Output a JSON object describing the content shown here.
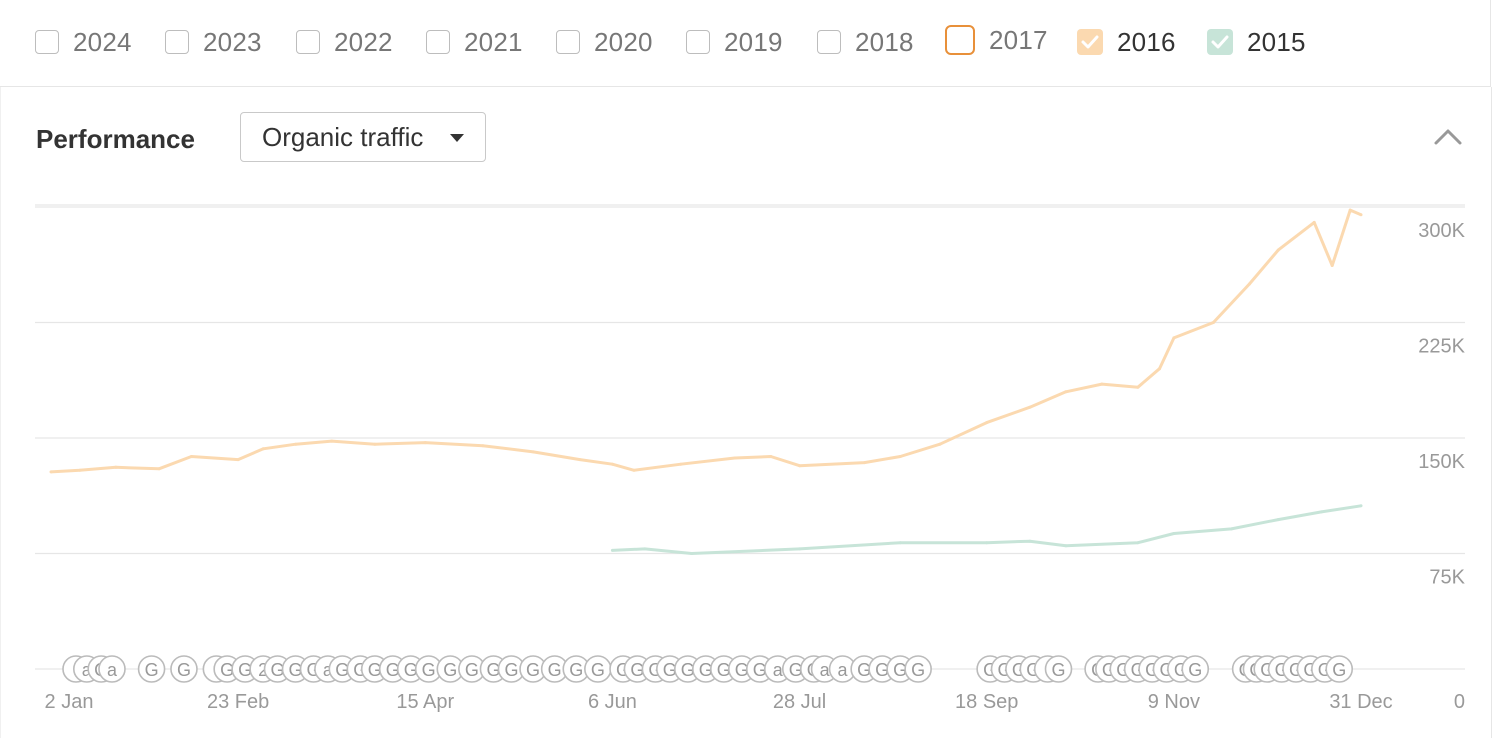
{
  "years": [
    {
      "label": "2024",
      "state": "unchecked"
    },
    {
      "label": "2023",
      "state": "unchecked"
    },
    {
      "label": "2022",
      "state": "unchecked"
    },
    {
      "label": "2021",
      "state": "unchecked"
    },
    {
      "label": "2020",
      "state": "unchecked"
    },
    {
      "label": "2019",
      "state": "unchecked"
    },
    {
      "label": "2018",
      "state": "unchecked"
    },
    {
      "label": "2017",
      "state": "highlighted"
    },
    {
      "label": "2016",
      "state": "checked"
    },
    {
      "label": "2015",
      "state": "checked"
    }
  ],
  "panel": {
    "title": "Performance",
    "metric_selected": "Organic traffic",
    "collapse_icon": "chevron-up-icon",
    "annotation_icon": "google-update-marker-icon"
  },
  "colors": {
    "series_2016": "#fbd9b0",
    "series_2015": "#c7e4d8",
    "highlight": "#e8903a",
    "grid": "#e6e6e6"
  },
  "chart_data": {
    "type": "line",
    "xlabel": "",
    "ylabel": "",
    "x_ticks": [
      "2 Jan",
      "23 Feb",
      "15 Apr",
      "6 Jun",
      "28 Jul",
      "18 Sep",
      "9 Nov",
      "31 Dec"
    ],
    "y_ticks": [
      "0",
      "75K",
      "150K",
      "225K",
      "300K"
    ],
    "ylim": [
      0,
      310000
    ],
    "grid": true,
    "series": [
      {
        "name": "2016",
        "color": "#fbd9b0",
        "points": [
          [
            "2 Jan",
            128000
          ],
          [
            "10 Jan",
            129000
          ],
          [
            "20 Jan",
            131000
          ],
          [
            "1 Feb",
            130000
          ],
          [
            "10 Feb",
            138000
          ],
          [
            "23 Feb",
            136000
          ],
          [
            "1 Mar",
            143000
          ],
          [
            "10 Mar",
            146000
          ],
          [
            "20 Mar",
            148000
          ],
          [
            "1 Apr",
            146000
          ],
          [
            "15 Apr",
            147000
          ],
          [
            "1 May",
            145000
          ],
          [
            "15 May",
            141000
          ],
          [
            "28 May",
            136000
          ],
          [
            "6 Jun",
            133000
          ],
          [
            "12 Jun",
            129000
          ],
          [
            "25 Jun",
            133000
          ],
          [
            "10 Jul",
            137000
          ],
          [
            "20 Jul",
            138000
          ],
          [
            "28 Jul",
            132000
          ],
          [
            "15 Aug",
            134000
          ],
          [
            "25 Aug",
            138000
          ],
          [
            "5 Sep",
            146000
          ],
          [
            "18 Sep",
            160000
          ],
          [
            "30 Sep",
            170000
          ],
          [
            "10 Oct",
            180000
          ],
          [
            "20 Oct",
            185000
          ],
          [
            "30 Oct",
            183000
          ],
          [
            "5 Nov",
            195000
          ],
          [
            "9 Nov",
            215000
          ],
          [
            "20 Nov",
            225000
          ],
          [
            "30 Nov",
            250000
          ],
          [
            "8 Dec",
            272000
          ],
          [
            "18 Dec",
            290000
          ],
          [
            "23 Dec",
            262000
          ],
          [
            "28 Dec",
            298000
          ],
          [
            "31 Dec",
            295000
          ]
        ]
      },
      {
        "name": "2015",
        "color": "#c7e4d8",
        "points": [
          [
            "6 Jun",
            77000
          ],
          [
            "15 Jun",
            78000
          ],
          [
            "28 Jun",
            75000
          ],
          [
            "28 Jul",
            78000
          ],
          [
            "25 Aug",
            82000
          ],
          [
            "18 Sep",
            82000
          ],
          [
            "30 Sep",
            83000
          ],
          [
            "10 Oct",
            80000
          ],
          [
            "30 Oct",
            82000
          ],
          [
            "9 Nov",
            88000
          ],
          [
            "25 Nov",
            91000
          ],
          [
            "8 Dec",
            97000
          ],
          [
            "20 Dec",
            102000
          ],
          [
            "31 Dec",
            106000
          ]
        ]
      }
    ],
    "annotation_markers": [
      {
        "date": "2 Jan",
        "label": ""
      },
      {
        "date": "5 Jan",
        "label": "a"
      },
      {
        "date": "9 Jan",
        "label": "G"
      },
      {
        "date": "12 Jan",
        "label": "a"
      },
      {
        "date": "23 Jan",
        "label": "G"
      },
      {
        "date": "1 Feb",
        "label": "G"
      },
      {
        "date": "10 Feb",
        "label": ""
      },
      {
        "date": "13 Feb",
        "label": "G"
      },
      {
        "date": "18 Feb",
        "label": "G"
      },
      {
        "date": "23 Feb",
        "label": "2"
      },
      {
        "date": "27 Feb",
        "label": "G"
      },
      {
        "date": "3 Mar",
        "label": "G"
      },
      {
        "date": "8 Mar",
        "label": "G"
      },
      {
        "date": "12 Mar",
        "label": "a"
      },
      {
        "date": "16 Mar",
        "label": "G"
      },
      {
        "date": "21 Mar",
        "label": "G"
      },
      {
        "date": "25 Mar",
        "label": "G"
      },
      {
        "date": "30 Mar",
        "label": "G"
      },
      {
        "date": "4 Apr",
        "label": "G"
      },
      {
        "date": "9 Apr",
        "label": "G"
      },
      {
        "date": "15 Apr",
        "label": "G"
      },
      {
        "date": "21 Apr",
        "label": "G"
      },
      {
        "date": "27 Apr",
        "label": "G"
      },
      {
        "date": "2 May",
        "label": "G"
      },
      {
        "date": "8 May",
        "label": "G"
      },
      {
        "date": "14 May",
        "label": "G"
      },
      {
        "date": "20 May",
        "label": "G"
      },
      {
        "date": "26 May",
        "label": "G"
      },
      {
        "date": "2 Jun",
        "label": "G"
      },
      {
        "date": "6 Jun",
        "label": "G"
      },
      {
        "date": "11 Jun",
        "label": "G"
      },
      {
        "date": "15 Jun",
        "label": "G"
      },
      {
        "date": "20 Jun",
        "label": "G"
      },
      {
        "date": "25 Jun",
        "label": "G"
      },
      {
        "date": "30 Jun",
        "label": "G"
      },
      {
        "date": "5 Jul",
        "label": "G"
      },
      {
        "date": "10 Jul",
        "label": "G"
      },
      {
        "date": "15 Jul",
        "label": "a"
      },
      {
        "date": "20 Jul",
        "label": "G"
      },
      {
        "date": "25 Jul",
        "label": "G"
      },
      {
        "date": "28 Jul",
        "label": "a"
      },
      {
        "date": "2 Aug",
        "label": "a"
      },
      {
        "date": "8 Aug",
        "label": "G"
      },
      {
        "date": "13 Aug",
        "label": "G"
      },
      {
        "date": "18 Aug",
        "label": "G"
      },
      {
        "date": "23 Aug",
        "label": "G"
      },
      {
        "date": "12 Sep",
        "label": "G"
      },
      {
        "date": "16 Sep",
        "label": "G"
      },
      {
        "date": "20 Sep",
        "label": "G"
      },
      {
        "date": "24 Sep",
        "label": "G"
      },
      {
        "date": "28 Sep",
        "label": ""
      },
      {
        "date": "1 Oct",
        "label": "G"
      },
      {
        "date": "12 Oct",
        "label": "G"
      },
      {
        "date": "15 Oct",
        "label": "G"
      },
      {
        "date": "19 Oct",
        "label": "G"
      },
      {
        "date": "23 Oct",
        "label": "G"
      },
      {
        "date": "27 Oct",
        "label": "G"
      },
      {
        "date": "31 Oct",
        "label": "G"
      },
      {
        "date": "4 Nov",
        "label": "G"
      },
      {
        "date": "8 Nov",
        "label": "G"
      },
      {
        "date": "22 Nov",
        "label": "G"
      },
      {
        "date": "25 Nov",
        "label": "G"
      },
      {
        "date": "28 Nov",
        "label": "G"
      },
      {
        "date": "2 Dec",
        "label": "G"
      },
      {
        "date": "6 Dec",
        "label": "G"
      },
      {
        "date": "10 Dec",
        "label": "G"
      },
      {
        "date": "14 Dec",
        "label": "G"
      },
      {
        "date": "18 Dec",
        "label": "G"
      }
    ]
  }
}
